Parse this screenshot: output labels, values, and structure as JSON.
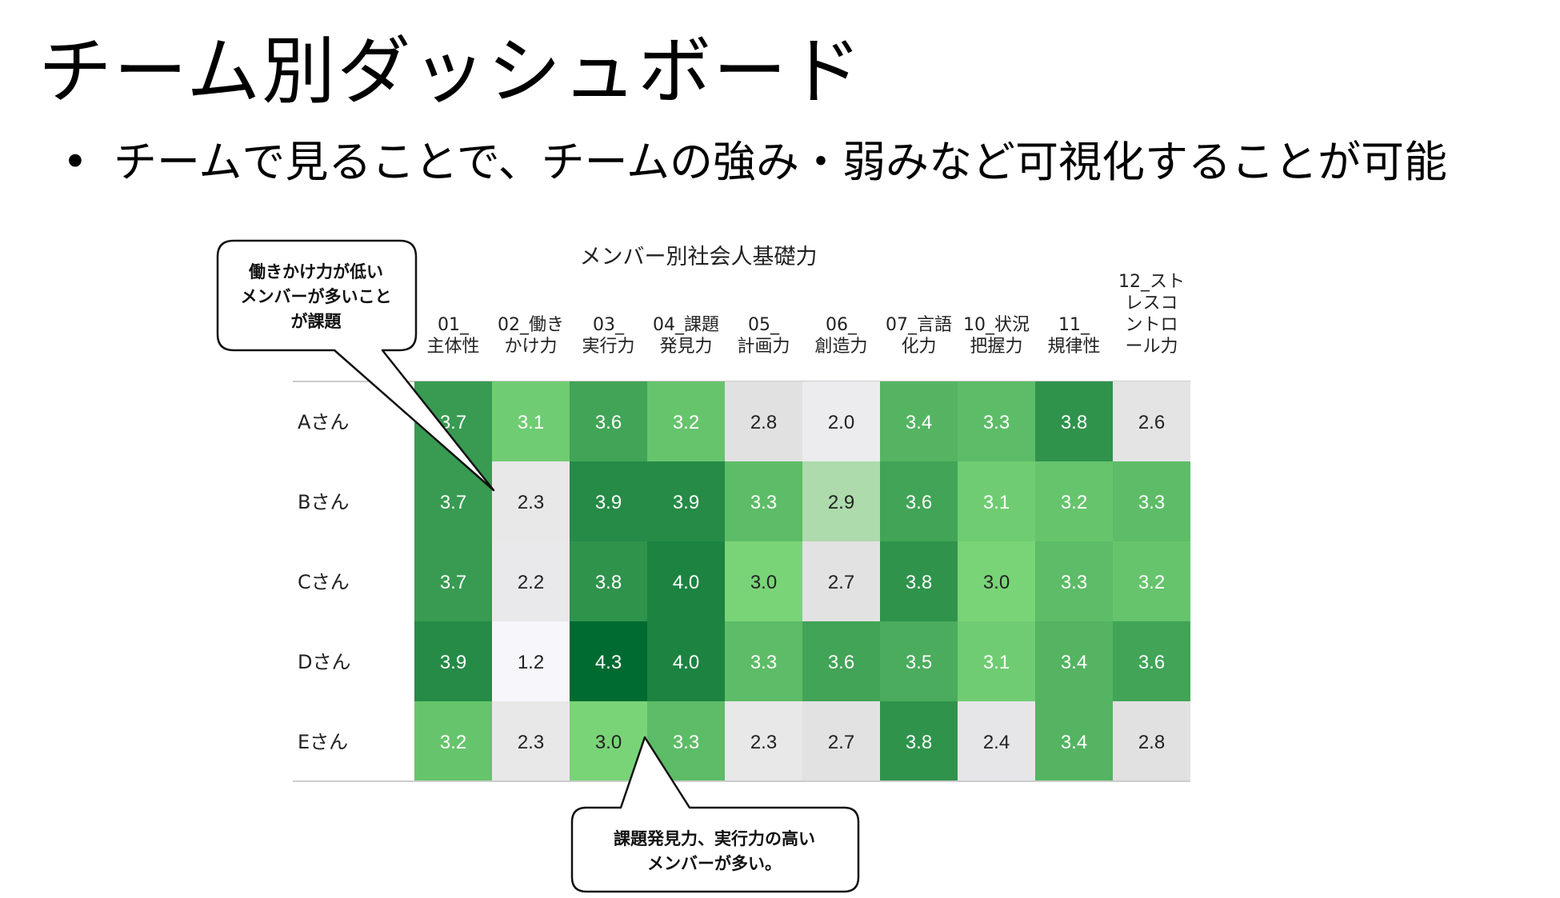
{
  "slide": {
    "title": "チーム別ダッシュボード",
    "bullet": "チームで見ることで、チームの強み・弱みなど可視化することが可能"
  },
  "chart_data": {
    "type": "heatmap",
    "title": "メンバー別社会人基礎力",
    "columns": [
      [
        "01_",
        "主体性"
      ],
      [
        "02_働き",
        "かけ力"
      ],
      [
        "03_",
        "実行力"
      ],
      [
        "04_課題",
        "発見力"
      ],
      [
        "05_",
        "計画力"
      ],
      [
        "06_",
        "創造力"
      ],
      [
        "07_言語",
        "化力"
      ],
      [
        "10_状況",
        "把握力"
      ],
      [
        "11_",
        "規律性"
      ],
      [
        "12_スト",
        "レスコ",
        "ントロ",
        "ール力"
      ]
    ],
    "rows": [
      "Aさん",
      "Bさん",
      "Cさん",
      "Dさん",
      "Eさん"
    ],
    "values": [
      [
        3.7,
        3.1,
        3.6,
        3.2,
        2.8,
        2.0,
        3.4,
        3.3,
        3.8,
        2.6
      ],
      [
        3.7,
        2.3,
        3.9,
        3.9,
        3.3,
        2.9,
        3.6,
        3.1,
        3.2,
        3.3
      ],
      [
        3.7,
        2.2,
        3.8,
        4.0,
        3.0,
        2.7,
        3.8,
        3.0,
        3.3,
        3.2
      ],
      [
        3.9,
        1.2,
        4.3,
        4.0,
        3.3,
        3.6,
        3.5,
        3.1,
        3.4,
        3.6
      ],
      [
        3.2,
        2.3,
        3.0,
        3.3,
        2.3,
        2.7,
        3.8,
        2.4,
        3.4,
        2.8
      ]
    ],
    "colors": {
      "low": "#f6f6fb",
      "mid": "#e1e1e1",
      "high": "#79d477",
      "max": "#006b31"
    }
  },
  "callouts": [
    {
      "lines": [
        "働きかけ力が低い",
        "メンバーが多いこと",
        "が課題"
      ]
    },
    {
      "lines": [
        "課題発見力、実行力の高い",
        "メンバーが多い。"
      ]
    }
  ]
}
